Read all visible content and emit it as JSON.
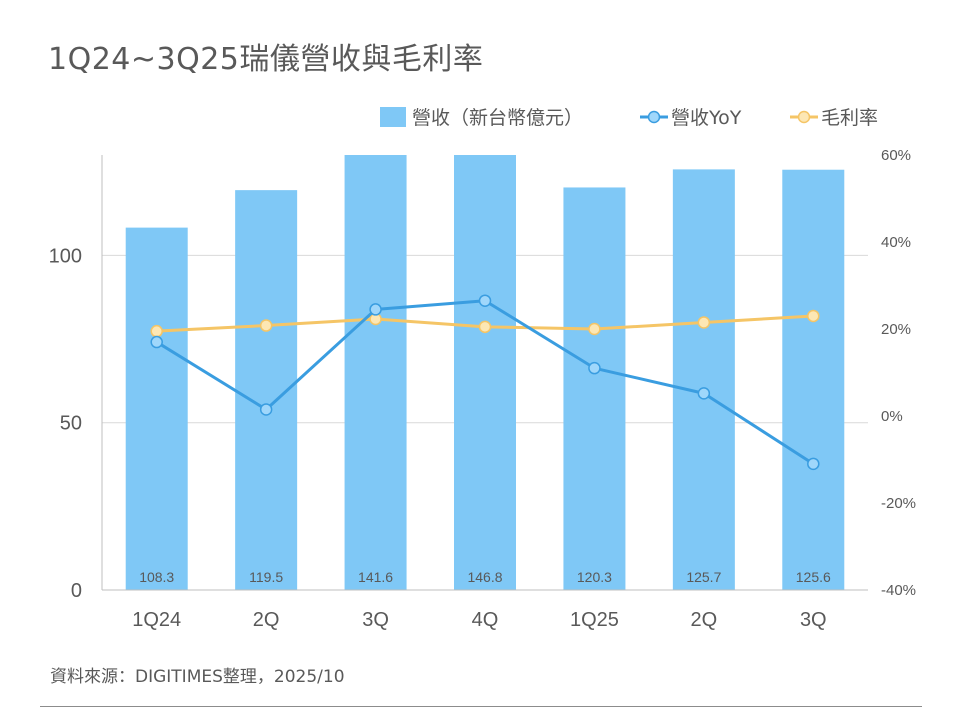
{
  "title": "1Q24~3Q25瑞儀營收與毛利率",
  "source": "資料來源：DIGITIMES整理，2025/10",
  "colors": {
    "bar": "#7fc8f6",
    "yoy": "#3a9de0",
    "yoy_marker": "#9fd7fb",
    "margin": "#f5c566",
    "margin_marker": "#fde7b4",
    "grid": "#d9d9d9",
    "text": "#595959"
  },
  "chart_data": {
    "type": "bar",
    "categories": [
      "1Q24",
      "2Q",
      "3Q",
      "4Q",
      "1Q25",
      "2Q",
      "3Q"
    ],
    "legend": [
      "營收（新台幣億元）",
      "營收YoY",
      "毛利率"
    ],
    "legend_position": "top-right",
    "series": [
      {
        "name": "營收（新台幣億元）",
        "type": "bar",
        "axis": "left",
        "values": [
          108.3,
          119.5,
          141.6,
          146.8,
          120.3,
          125.7,
          125.6
        ],
        "labels": [
          "108.3",
          "119.5",
          "141.6",
          "146.8",
          "120.3",
          "125.7",
          "125.6"
        ]
      },
      {
        "name": "營收YoY",
        "type": "line",
        "axis": "right",
        "values": [
          17.0,
          1.5,
          24.5,
          26.5,
          11.0,
          5.2,
          -11.0
        ]
      },
      {
        "name": "毛利率",
        "type": "line",
        "axis": "right",
        "values": [
          19.5,
          20.8,
          22.3,
          20.5,
          20.0,
          21.5,
          23.0
        ]
      }
    ],
    "y_left": {
      "ticks": [
        0,
        50,
        100
      ],
      "tick_labels": [
        "0",
        "50",
        "100"
      ],
      "range": [
        0,
        130
      ]
    },
    "y_right": {
      "ticks": [
        -40,
        -20,
        0,
        20,
        40,
        60
      ],
      "tick_labels": [
        "-40%",
        "-20%",
        "0%",
        "20%",
        "40%",
        "60%"
      ],
      "range": [
        -40,
        60
      ]
    },
    "grid": true
  }
}
